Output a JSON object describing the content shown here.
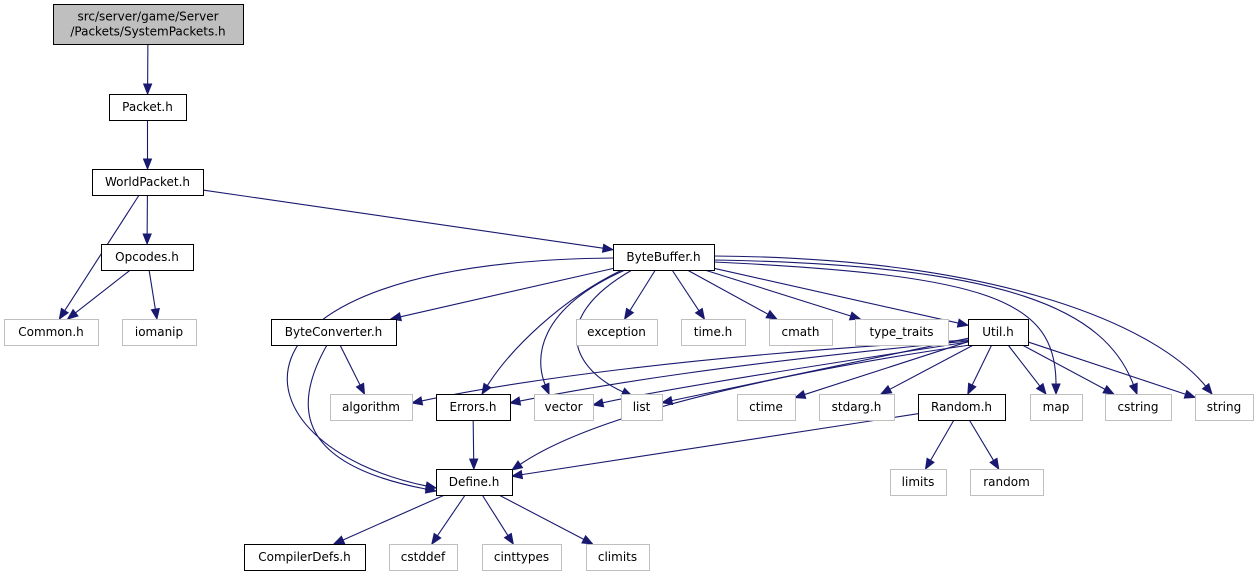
{
  "colors": {
    "edge": "#191970",
    "documented_border": "#000000",
    "external_border": "#bfbfbf",
    "root_fill": "#bfbfbf",
    "external_text": "#000000"
  },
  "nodes": [
    {
      "id": "root",
      "lines": [
        "src/server/game/Server",
        "/Packets/SystemPackets.h"
      ],
      "kind": "root"
    },
    {
      "id": "packet",
      "lines": [
        "Packet.h"
      ],
      "kind": "documented"
    },
    {
      "id": "worldpacket",
      "lines": [
        "WorldPacket.h"
      ],
      "kind": "documented"
    },
    {
      "id": "opcodes",
      "lines": [
        "Opcodes.h"
      ],
      "kind": "documented"
    },
    {
      "id": "common",
      "lines": [
        "Common.h"
      ],
      "kind": "external"
    },
    {
      "id": "iomanip",
      "lines": [
        "iomanip"
      ],
      "kind": "external"
    },
    {
      "id": "bytebuffer",
      "lines": [
        "ByteBuffer.h"
      ],
      "kind": "documented"
    },
    {
      "id": "byteconverter",
      "lines": [
        "ByteConverter.h"
      ],
      "kind": "documented"
    },
    {
      "id": "exception",
      "lines": [
        "exception"
      ],
      "kind": "external"
    },
    {
      "id": "timeh",
      "lines": [
        "time.h"
      ],
      "kind": "external"
    },
    {
      "id": "cmath",
      "lines": [
        "cmath"
      ],
      "kind": "external"
    },
    {
      "id": "type_traits",
      "lines": [
        "type_traits"
      ],
      "kind": "external"
    },
    {
      "id": "util",
      "lines": [
        "Util.h"
      ],
      "kind": "documented"
    },
    {
      "id": "algorithm",
      "lines": [
        "algorithm"
      ],
      "kind": "external"
    },
    {
      "id": "errors",
      "lines": [
        "Errors.h"
      ],
      "kind": "documented"
    },
    {
      "id": "vector",
      "lines": [
        "vector"
      ],
      "kind": "external"
    },
    {
      "id": "list",
      "lines": [
        "list"
      ],
      "kind": "external"
    },
    {
      "id": "ctime",
      "lines": [
        "ctime"
      ],
      "kind": "external"
    },
    {
      "id": "stdarg",
      "lines": [
        "stdarg.h"
      ],
      "kind": "external"
    },
    {
      "id": "random_h",
      "lines": [
        "Random.h"
      ],
      "kind": "documented"
    },
    {
      "id": "map",
      "lines": [
        "map"
      ],
      "kind": "external"
    },
    {
      "id": "cstring",
      "lines": [
        "cstring"
      ],
      "kind": "external"
    },
    {
      "id": "string",
      "lines": [
        "string"
      ],
      "kind": "external"
    },
    {
      "id": "define",
      "lines": [
        "Define.h"
      ],
      "kind": "documented"
    },
    {
      "id": "limits",
      "lines": [
        "limits"
      ],
      "kind": "external"
    },
    {
      "id": "random",
      "lines": [
        "random"
      ],
      "kind": "external"
    },
    {
      "id": "compilerdefs",
      "lines": [
        "CompilerDefs.h"
      ],
      "kind": "documented"
    },
    {
      "id": "cstddef",
      "lines": [
        "cstddef"
      ],
      "kind": "external"
    },
    {
      "id": "cinttypes",
      "lines": [
        "cinttypes"
      ],
      "kind": "external"
    },
    {
      "id": "climits",
      "lines": [
        "climits"
      ],
      "kind": "external"
    }
  ],
  "edges": [
    [
      "root",
      "packet"
    ],
    [
      "packet",
      "worldpacket"
    ],
    [
      "worldpacket",
      "common"
    ],
    [
      "worldpacket",
      "opcodes"
    ],
    [
      "worldpacket",
      "bytebuffer"
    ],
    [
      "opcodes",
      "common"
    ],
    [
      "opcodes",
      "iomanip"
    ],
    [
      "bytebuffer",
      "byteconverter"
    ],
    [
      "bytebuffer",
      "exception"
    ],
    [
      "bytebuffer",
      "timeh"
    ],
    [
      "bytebuffer",
      "cmath"
    ],
    [
      "bytebuffer",
      "type_traits"
    ],
    [
      "bytebuffer",
      "util"
    ],
    [
      "bytebuffer",
      "map"
    ],
    [
      "bytebuffer",
      "cstring"
    ],
    [
      "bytebuffer",
      "string"
    ],
    [
      "bytebuffer",
      "errors"
    ],
    [
      "bytebuffer",
      "vector"
    ],
    [
      "bytebuffer",
      "list"
    ],
    [
      "bytebuffer",
      "define"
    ],
    [
      "byteconverter",
      "algorithm"
    ],
    [
      "byteconverter",
      "define"
    ],
    [
      "util",
      "algorithm"
    ],
    [
      "util",
      "errors"
    ],
    [
      "util",
      "vector"
    ],
    [
      "util",
      "list"
    ],
    [
      "util",
      "ctime"
    ],
    [
      "util",
      "stdarg"
    ],
    [
      "util",
      "random_h"
    ],
    [
      "util",
      "map"
    ],
    [
      "util",
      "cstring"
    ],
    [
      "util",
      "string"
    ],
    [
      "util",
      "define"
    ],
    [
      "errors",
      "define"
    ],
    [
      "random_h",
      "define"
    ],
    [
      "random_h",
      "limits"
    ],
    [
      "random_h",
      "random"
    ],
    [
      "define",
      "compilerdefs"
    ],
    [
      "define",
      "cstddef"
    ],
    [
      "define",
      "cinttypes"
    ],
    [
      "define",
      "climits"
    ]
  ]
}
